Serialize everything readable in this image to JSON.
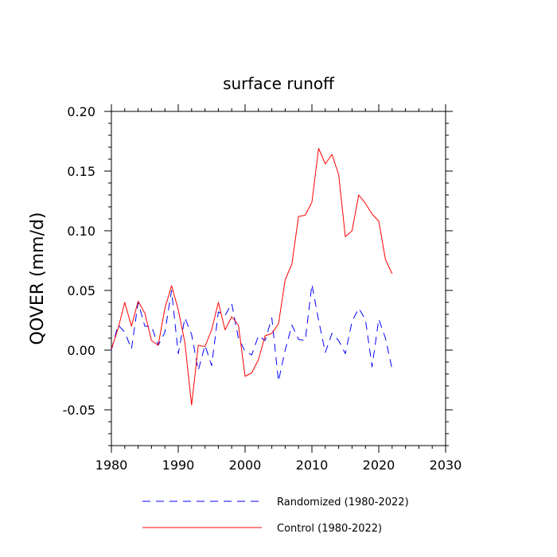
{
  "chart_data": {
    "type": "line",
    "title": "surface runoff",
    "xlabel": "",
    "ylabel": "QOVER  (mm/d)",
    "xlim": [
      1980,
      2030
    ],
    "ylim": [
      -0.08,
      0.2
    ],
    "xticks": [
      1980,
      1990,
      2000,
      2010,
      2020,
      2030
    ],
    "xtick_labels": [
      "1980",
      "1990",
      "2000",
      "2010",
      "2020",
      "2030"
    ],
    "yticks": [
      -0.05,
      0.0,
      0.05,
      0.1,
      0.15,
      0.2
    ],
    "ytick_labels": [
      "-0.05",
      "0.00",
      "0.05",
      "0.10",
      "0.15",
      "0.20"
    ],
    "x": [
      1980,
      1981,
      1982,
      1983,
      1984,
      1985,
      1986,
      1987,
      1988,
      1989,
      1990,
      1991,
      1992,
      1993,
      1994,
      1995,
      1996,
      1997,
      1998,
      1999,
      2000,
      2001,
      2002,
      2003,
      2004,
      2005,
      2006,
      2007,
      2008,
      2009,
      2010,
      2011,
      2012,
      2013,
      2014,
      2015,
      2016,
      2017,
      2018,
      2019,
      2020,
      2021,
      2022
    ],
    "series": [
      {
        "name": "Randomized (1980-2022)",
        "color": "#0000ff",
        "dash": "dashed",
        "values": [
          0.0,
          0.021,
          0.015,
          0.001,
          0.04,
          0.02,
          0.02,
          0.004,
          0.015,
          0.05,
          -0.003,
          0.027,
          0.013,
          -0.017,
          0.004,
          -0.013,
          0.032,
          0.029,
          0.039,
          0.01,
          -0.001,
          -0.004,
          0.012,
          0.008,
          0.027,
          -0.026,
          0.0,
          0.021,
          0.009,
          0.008,
          0.055,
          0.025,
          -0.002,
          0.014,
          0.008,
          -0.003,
          0.024,
          0.035,
          0.026,
          -0.014,
          0.026,
          0.01,
          -0.016
        ]
      },
      {
        "name": "Control (1980-2022)",
        "color": "#ff0000",
        "dash": "solid",
        "values": [
          0.001,
          0.018,
          0.04,
          0.02,
          0.041,
          0.031,
          0.008,
          0.004,
          0.035,
          0.054,
          0.034,
          0.006,
          -0.046,
          0.004,
          0.003,
          0.017,
          0.04,
          0.017,
          0.028,
          0.021,
          -0.022,
          -0.019,
          -0.008,
          0.012,
          0.014,
          0.022,
          0.059,
          0.072,
          0.112,
          0.113,
          0.124,
          0.169,
          0.156,
          0.164,
          0.147,
          0.095,
          0.1,
          0.13,
          0.123,
          0.114,
          0.108,
          0.076,
          0.064
        ]
      }
    ],
    "legend": [
      "Randomized (1980-2022)",
      "Control (1980-2022)"
    ],
    "legend_position": "bottom"
  }
}
